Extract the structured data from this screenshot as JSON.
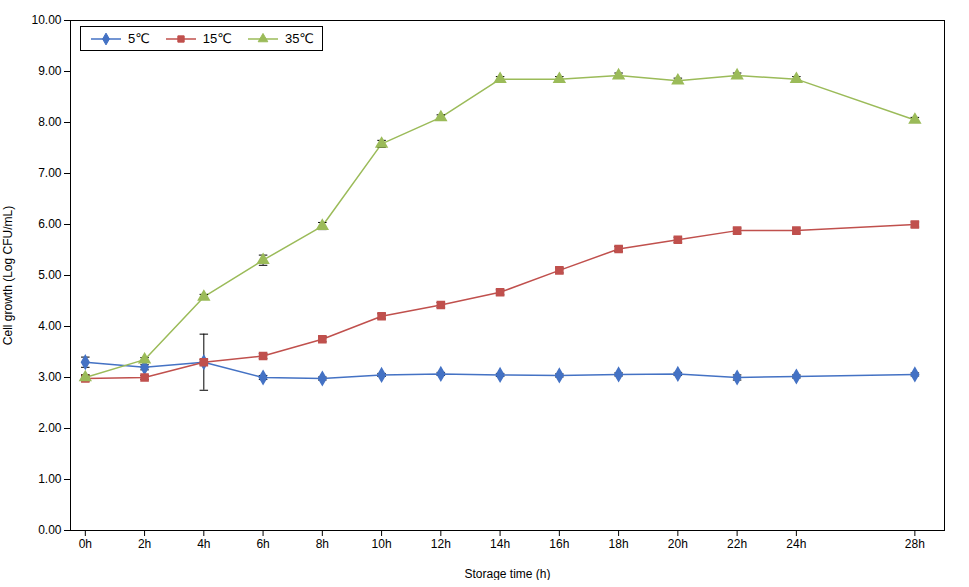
{
  "chart_data": {
    "type": "line",
    "xlabel": "Storage time (h)",
    "ylabel": "Cell growth (Log CFU/mL)",
    "x": [
      0,
      2,
      4,
      6,
      8,
      10,
      12,
      14,
      16,
      18,
      20,
      22,
      24,
      28
    ],
    "xlim": [
      -0.5,
      29
    ],
    "xticks": [
      {
        "value": 0,
        "label": "0h"
      },
      {
        "value": 2,
        "label": "2h"
      },
      {
        "value": 4,
        "label": "4h"
      },
      {
        "value": 6,
        "label": "6h"
      },
      {
        "value": 8,
        "label": "8h"
      },
      {
        "value": 10,
        "label": "10h"
      },
      {
        "value": 12,
        "label": "12h"
      },
      {
        "value": 14,
        "label": "14h"
      },
      {
        "value": 16,
        "label": "16h"
      },
      {
        "value": 18,
        "label": "18h"
      },
      {
        "value": 20,
        "label": "20h"
      },
      {
        "value": 22,
        "label": "22h"
      },
      {
        "value": 24,
        "label": "24h"
      },
      {
        "value": 28,
        "label": "28h"
      }
    ],
    "ylim": [
      0.0,
      10.0
    ],
    "yticks": [
      {
        "value": 0,
        "label": "0.00"
      },
      {
        "value": 1,
        "label": "1.00"
      },
      {
        "value": 2,
        "label": "2.00"
      },
      {
        "value": 3,
        "label": "3.00"
      },
      {
        "value": 4,
        "label": "4.00"
      },
      {
        "value": 5,
        "label": "5.00"
      },
      {
        "value": 6,
        "label": "6.00"
      },
      {
        "value": 7,
        "label": "7.00"
      },
      {
        "value": 8,
        "label": "8.00"
      },
      {
        "value": 9,
        "label": "9.00"
      },
      {
        "value": 10,
        "label": "10.00"
      }
    ],
    "grid": false,
    "legend": "upper left",
    "series": [
      {
        "name": "5℃",
        "color": "#4472C4",
        "marker": "diamond",
        "values": [
          3.3,
          3.2,
          3.3,
          3.0,
          2.98,
          3.05,
          3.07,
          3.05,
          3.04,
          3.06,
          3.07,
          3.0,
          3.02,
          3.06
        ],
        "errors": [
          0.1,
          0.05,
          0.55,
          0.04,
          0.03,
          0.03,
          0.03,
          0.03,
          0.03,
          0.03,
          0.03,
          0.05,
          0.03,
          0.03
        ]
      },
      {
        "name": "15℃",
        "color": "#C0504D",
        "marker": "square",
        "values": [
          2.98,
          3.0,
          3.3,
          3.42,
          3.75,
          4.2,
          4.42,
          4.67,
          5.1,
          5.52,
          5.7,
          5.88,
          5.88,
          6.0
        ],
        "errors": [
          0.05,
          0.04,
          0.05,
          0.05,
          0.05,
          0.05,
          0.05,
          0.05,
          0.05,
          0.05,
          0.05,
          0.05,
          0.05,
          0.05
        ]
      },
      {
        "name": "35℃",
        "color": "#9BBB59",
        "marker": "triangle",
        "values": [
          3.0,
          3.35,
          4.58,
          5.3,
          5.97,
          7.58,
          8.1,
          8.85,
          8.85,
          8.92,
          8.82,
          8.92,
          8.85,
          8.05
        ],
        "errors": [
          0.05,
          0.04,
          0.05,
          0.1,
          0.07,
          0.07,
          0.05,
          0.05,
          0.05,
          0.05,
          0.05,
          0.05,
          0.05,
          0.05
        ]
      }
    ]
  }
}
